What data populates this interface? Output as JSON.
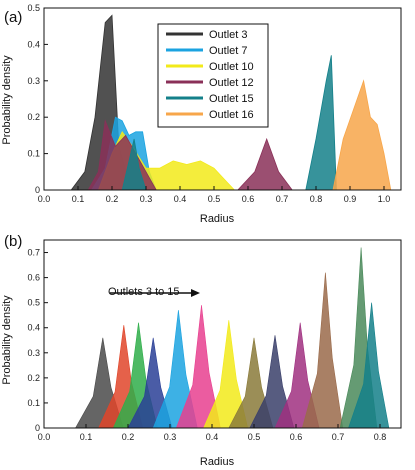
{
  "chart_data": [
    {
      "type": "area",
      "panel_label": "(a)",
      "xlabel": "Radius",
      "ylabel": "Probability density",
      "xlim": [
        0.0,
        1.05
      ],
      "ylim": [
        0,
        0.5
      ],
      "xticks": [
        "0.0",
        "0.1",
        "0.2",
        "0.3",
        "0.4",
        "0.5",
        "0.6",
        "0.7",
        "0.8",
        "0.9",
        "1.0"
      ],
      "yticks": [
        "0",
        "0.1",
        "0.2",
        "0.3",
        "0.4",
        "0.5"
      ],
      "legend_position": "top-center",
      "series": [
        {
          "name": "Outlet 3",
          "color": "#333333",
          "x": [
            0.08,
            0.12,
            0.15,
            0.18,
            0.2,
            0.22,
            0.25,
            0.28
          ],
          "values": [
            0.0,
            0.05,
            0.2,
            0.46,
            0.48,
            0.12,
            0.02,
            0.0
          ]
        },
        {
          "name": "Outlet 7",
          "color": "#1ba3e0",
          "x": [
            0.14,
            0.18,
            0.21,
            0.23,
            0.25,
            0.27,
            0.29,
            0.31,
            0.33
          ],
          "values": [
            0.0,
            0.06,
            0.2,
            0.19,
            0.15,
            0.16,
            0.16,
            0.05,
            0.0
          ]
        },
        {
          "name": "Outlet 10",
          "color": "#f2ea1a",
          "x": [
            0.16,
            0.2,
            0.23,
            0.26,
            0.3,
            0.34,
            0.38,
            0.42,
            0.46,
            0.5,
            0.53,
            0.56
          ],
          "values": [
            0.0,
            0.1,
            0.16,
            0.12,
            0.06,
            0.06,
            0.08,
            0.07,
            0.08,
            0.06,
            0.03,
            0.0
          ]
        },
        {
          "name": "Outlet 12",
          "color": "#8a3058",
          "x": [
            0.13,
            0.16,
            0.18,
            0.21,
            0.24,
            0.27,
            0.3,
            0.33,
            0.57,
            0.62,
            0.655,
            0.69,
            0.73
          ],
          "values": [
            0.0,
            0.05,
            0.19,
            0.12,
            0.15,
            0.1,
            0.05,
            0.0,
            0.0,
            0.05,
            0.14,
            0.05,
            0.0
          ]
        },
        {
          "name": "Outlet 15",
          "color": "#14808a",
          "x": [
            0.23,
            0.25,
            0.265,
            0.28,
            0.3,
            0.77,
            0.8,
            0.83,
            0.845,
            0.86
          ],
          "values": [
            0.0,
            0.08,
            0.14,
            0.06,
            0.0,
            0.0,
            0.14,
            0.3,
            0.37,
            0.0
          ]
        },
        {
          "name": "Outlet 16",
          "color": "#f7a64a",
          "x": [
            0.85,
            0.88,
            0.91,
            0.94,
            0.96,
            0.98,
            1.0,
            1.02
          ],
          "values": [
            0.0,
            0.14,
            0.22,
            0.3,
            0.2,
            0.18,
            0.1,
            0.0
          ]
        }
      ]
    },
    {
      "type": "area",
      "panel_label": "(b)",
      "xlabel": "Radius",
      "ylabel": "Probability density",
      "xlim": [
        0.0,
        0.85
      ],
      "ylim": [
        0,
        0.75
      ],
      "xticks": [
        "0.0",
        "0.1",
        "0.2",
        "0.3",
        "0.4",
        "0.5",
        "0.6",
        "0.7",
        "0.8"
      ],
      "yticks": [
        "0",
        "0.1",
        "0.2",
        "0.3",
        "0.4",
        "0.5",
        "0.6",
        "0.7"
      ],
      "annotation": "Outlets 3 to 15",
      "series": [
        {
          "color": "#4a4a4a",
          "peak_x": 0.14,
          "peak": 0.36,
          "width": 0.065
        },
        {
          "color": "#e0452a",
          "peak_x": 0.19,
          "peak": 0.41,
          "width": 0.06
        },
        {
          "color": "#2fae4a",
          "peak_x": 0.225,
          "peak": 0.42,
          "width": 0.06
        },
        {
          "color": "#2a3f96",
          "peak_x": 0.26,
          "peak": 0.36,
          "width": 0.06
        },
        {
          "color": "#1ba3e0",
          "peak_x": 0.32,
          "peak": 0.47,
          "width": 0.06
        },
        {
          "color": "#e8408f",
          "peak_x": 0.375,
          "peak": 0.49,
          "width": 0.06
        },
        {
          "color": "#f2ea1a",
          "peak_x": 0.44,
          "peak": 0.43,
          "width": 0.06
        },
        {
          "color": "#8a7a3a",
          "peak_x": 0.5,
          "peak": 0.36,
          "width": 0.06
        },
        {
          "color": "#3a3f6a",
          "peak_x": 0.55,
          "peak": 0.37,
          "width": 0.06
        },
        {
          "color": "#a03080",
          "peak_x": 0.61,
          "peak": 0.42,
          "width": 0.06
        },
        {
          "color": "#9a6a4a",
          "peak_x": 0.67,
          "peak": 0.62,
          "width": 0.055
        },
        {
          "color": "#4a8a5a",
          "peak_x": 0.755,
          "peak": 0.72,
          "width": 0.05
        },
        {
          "color": "#14808a",
          "peak_x": 0.78,
          "peak": 0.5,
          "width": 0.055
        }
      ]
    }
  ]
}
